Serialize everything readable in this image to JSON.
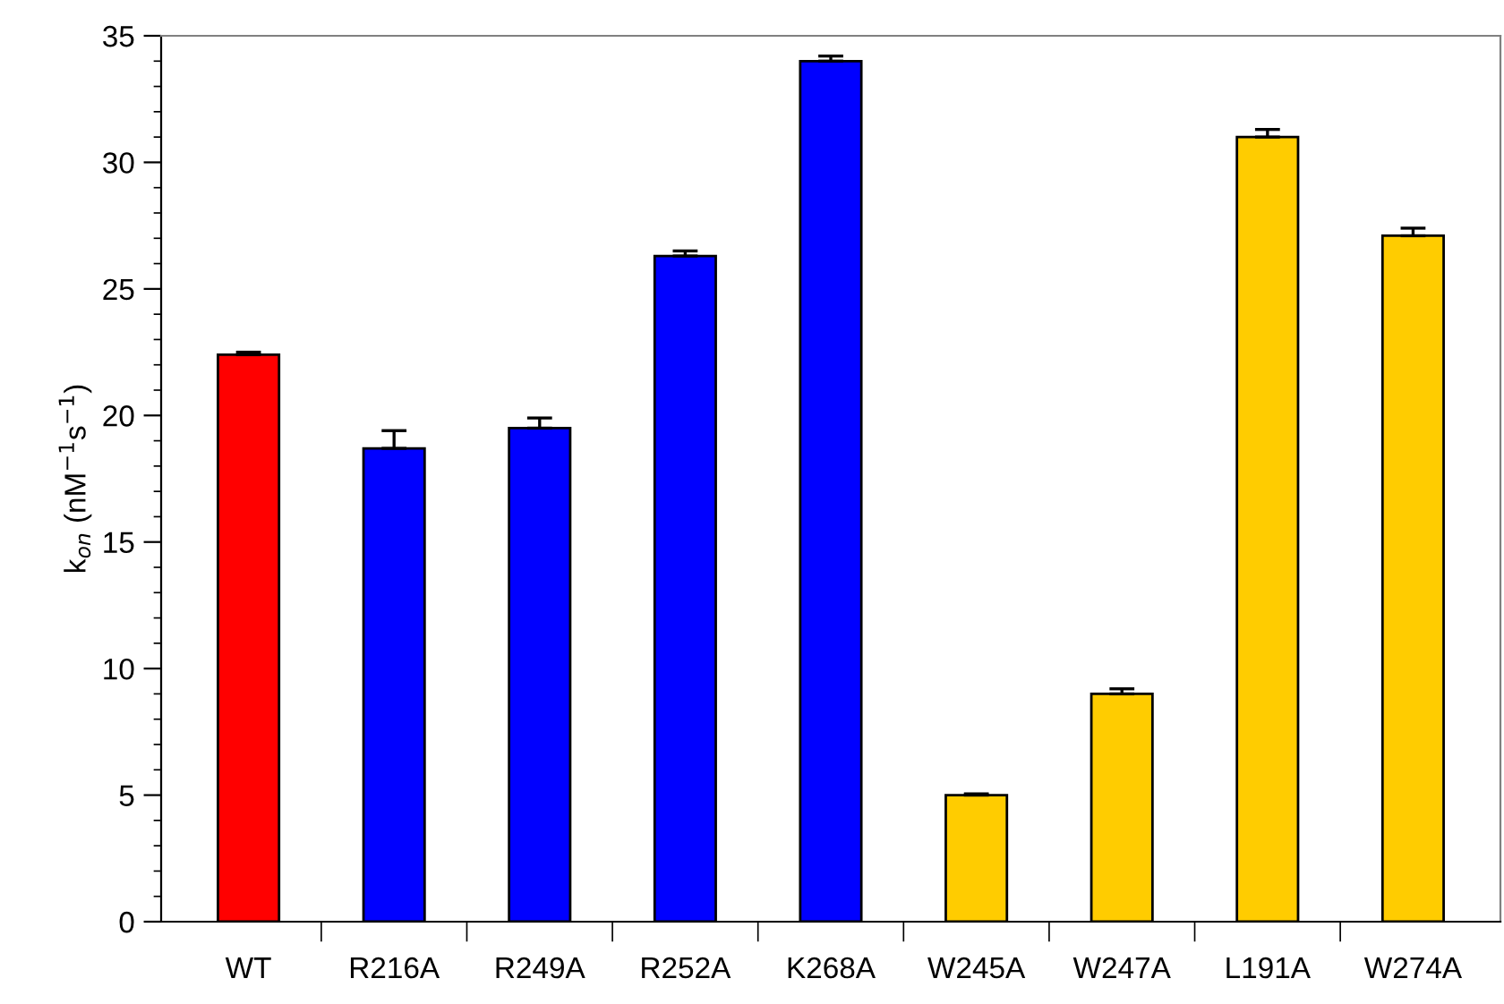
{
  "chart_data": {
    "type": "bar",
    "ylabel": "k$_{on}$ (nM$^{−1}$s$^{−1}$)",
    "categories": [
      "WT",
      "R216A",
      "R249A",
      "R252A",
      "K268A",
      "W245A",
      "W247A",
      "L191A",
      "W274A"
    ],
    "values": [
      22.4,
      18.7,
      19.5,
      26.3,
      34.0,
      5.0,
      9.0,
      31.0,
      27.1
    ],
    "errors": [
      [
        22.4,
        22.5
      ],
      [
        18.7,
        19.4
      ],
      [
        19.5,
        19.9
      ],
      [
        26.3,
        26.5
      ],
      [
        34.0,
        34.2
      ],
      [
        5.0,
        5.05
      ],
      [
        9.0,
        9.2
      ],
      [
        31.0,
        31.3
      ],
      [
        27.1,
        27.4
      ]
    ],
    "colors": [
      "#ff0000",
      "#0000ff",
      "#0000ff",
      "#0000ff",
      "#0000ff",
      "#ffcc00",
      "#ffcc00",
      "#ffcc00",
      "#ffcc00"
    ],
    "ylim": [
      0,
      35
    ],
    "yticks": [
      0,
      5,
      10,
      15,
      20,
      25,
      30,
      35
    ],
    "grid": false,
    "legend": false
  }
}
